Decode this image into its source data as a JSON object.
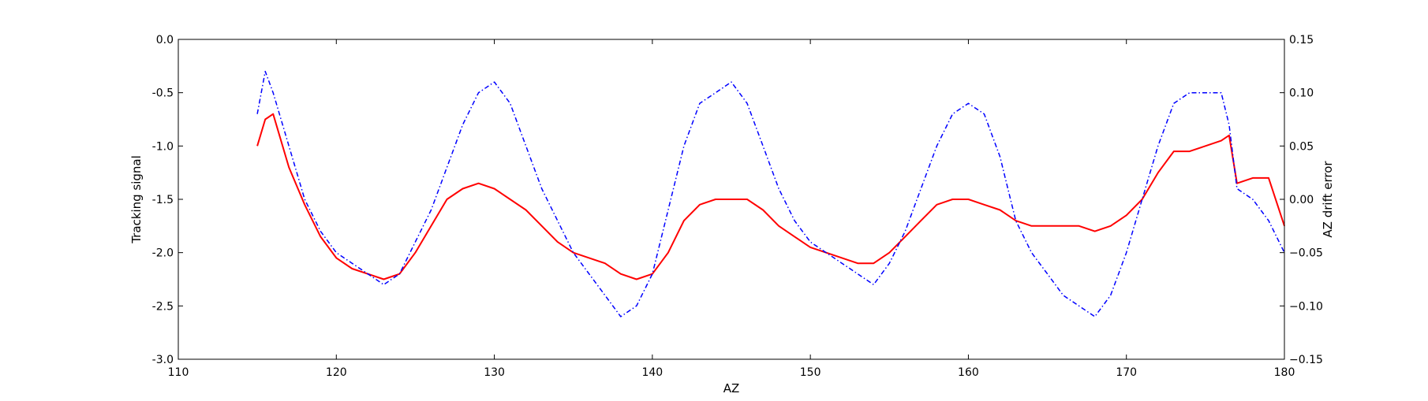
{
  "chart_data": {
    "type": "line",
    "title": "",
    "xlabel": "AZ",
    "ylabel": "Tracking signal",
    "y2label": "AZ drift error",
    "xlim": [
      110,
      180
    ],
    "ylim": [
      -3.0,
      0.0
    ],
    "y2lim": [
      -0.15,
      0.15
    ],
    "xticks": [
      "110",
      "120",
      "130",
      "140",
      "150",
      "160",
      "170",
      "180"
    ],
    "yticks": [
      "0.0",
      "-0.5",
      "-1.0",
      "-1.5",
      "-2.0",
      "-2.5",
      "-3.0"
    ],
    "y2ticks": [
      "0.15",
      "0.10",
      "0.05",
      "0.00",
      "−0.05",
      "−0.10",
      "−0.15"
    ],
    "grid": false,
    "series": [
      {
        "axis": "left",
        "color": "#ff0000",
        "style": "solid",
        "x": [
          115.0,
          115.5,
          116.0,
          117.0,
          118.0,
          119.0,
          120.0,
          121.0,
          122.0,
          123.0,
          124.0,
          125.0,
          126.0,
          127.0,
          128.0,
          129.0,
          130.0,
          131.0,
          132.0,
          133.0,
          134.0,
          135.0,
          136.0,
          137.0,
          138.0,
          139.0,
          140.0,
          141.0,
          142.0,
          143.0,
          144.0,
          145.0,
          146.0,
          147.0,
          148.0,
          149.0,
          150.0,
          151.0,
          152.0,
          153.0,
          154.0,
          155.0,
          156.0,
          157.0,
          158.0,
          159.0,
          160.0,
          161.0,
          162.0,
          163.0,
          164.0,
          165.0,
          166.0,
          167.0,
          168.0,
          169.0,
          170.0,
          171.0,
          172.0,
          173.0,
          174.0,
          175.0,
          176.0,
          176.5,
          177.0,
          178.0,
          179.0,
          180.0
        ],
        "y": [
          -1.0,
          -0.75,
          -0.7,
          -1.2,
          -1.55,
          -1.85,
          -2.05,
          -2.15,
          -2.2,
          -2.25,
          -2.2,
          -2.0,
          -1.75,
          -1.5,
          -1.4,
          -1.35,
          -1.4,
          -1.5,
          -1.6,
          -1.75,
          -1.9,
          -2.0,
          -2.05,
          -2.1,
          -2.2,
          -2.25,
          -2.2,
          -2.0,
          -1.7,
          -1.55,
          -1.5,
          -1.5,
          -1.5,
          -1.6,
          -1.75,
          -1.85,
          -1.95,
          -2.0,
          -2.05,
          -2.1,
          -2.1,
          -2.0,
          -1.85,
          -1.7,
          -1.55,
          -1.5,
          -1.5,
          -1.55,
          -1.6,
          -1.7,
          -1.75,
          -1.75,
          -1.75,
          -1.75,
          -1.8,
          -1.75,
          -1.65,
          -1.5,
          -1.25,
          -1.05,
          -1.05,
          -1.0,
          -0.95,
          -0.9,
          -1.35,
          -1.3,
          -1.3,
          -1.75
        ]
      },
      {
        "axis": "right",
        "color": "#0000ff",
        "style": "dashdot",
        "x": [
          115.0,
          115.5,
          116.0,
          117.0,
          118.0,
          119.0,
          120.0,
          121.0,
          122.0,
          123.0,
          124.0,
          125.0,
          126.0,
          127.0,
          128.0,
          129.0,
          130.0,
          131.0,
          132.0,
          133.0,
          134.0,
          135.0,
          136.0,
          137.0,
          138.0,
          139.0,
          140.0,
          141.0,
          142.0,
          143.0,
          144.0,
          145.0,
          146.0,
          147.0,
          148.0,
          149.0,
          150.0,
          151.0,
          152.0,
          153.0,
          154.0,
          155.0,
          156.0,
          157.0,
          158.0,
          159.0,
          160.0,
          161.0,
          162.0,
          163.0,
          164.0,
          165.0,
          166.0,
          167.0,
          168.0,
          169.0,
          170.0,
          171.0,
          172.0,
          173.0,
          174.0,
          175.0,
          176.0,
          176.5,
          177.0,
          178.0,
          179.0,
          180.0
        ],
        "y": [
          0.08,
          0.12,
          0.1,
          0.05,
          0.0,
          -0.03,
          -0.05,
          -0.06,
          -0.07,
          -0.08,
          -0.07,
          -0.04,
          -0.01,
          0.03,
          0.07,
          0.1,
          0.11,
          0.09,
          0.05,
          0.01,
          -0.02,
          -0.05,
          -0.07,
          -0.09,
          -0.11,
          -0.1,
          -0.07,
          -0.01,
          0.05,
          0.09,
          0.1,
          0.11,
          0.09,
          0.05,
          0.01,
          -0.02,
          -0.04,
          -0.05,
          -0.06,
          -0.07,
          -0.08,
          -0.06,
          -0.03,
          0.01,
          0.05,
          0.08,
          0.09,
          0.08,
          0.04,
          -0.02,
          -0.05,
          -0.07,
          -0.09,
          -0.1,
          -0.11,
          -0.09,
          -0.05,
          0.0,
          0.05,
          0.09,
          0.1,
          0.1,
          0.1,
          0.07,
          0.01,
          0.0,
          -0.02,
          -0.05
        ]
      }
    ]
  }
}
